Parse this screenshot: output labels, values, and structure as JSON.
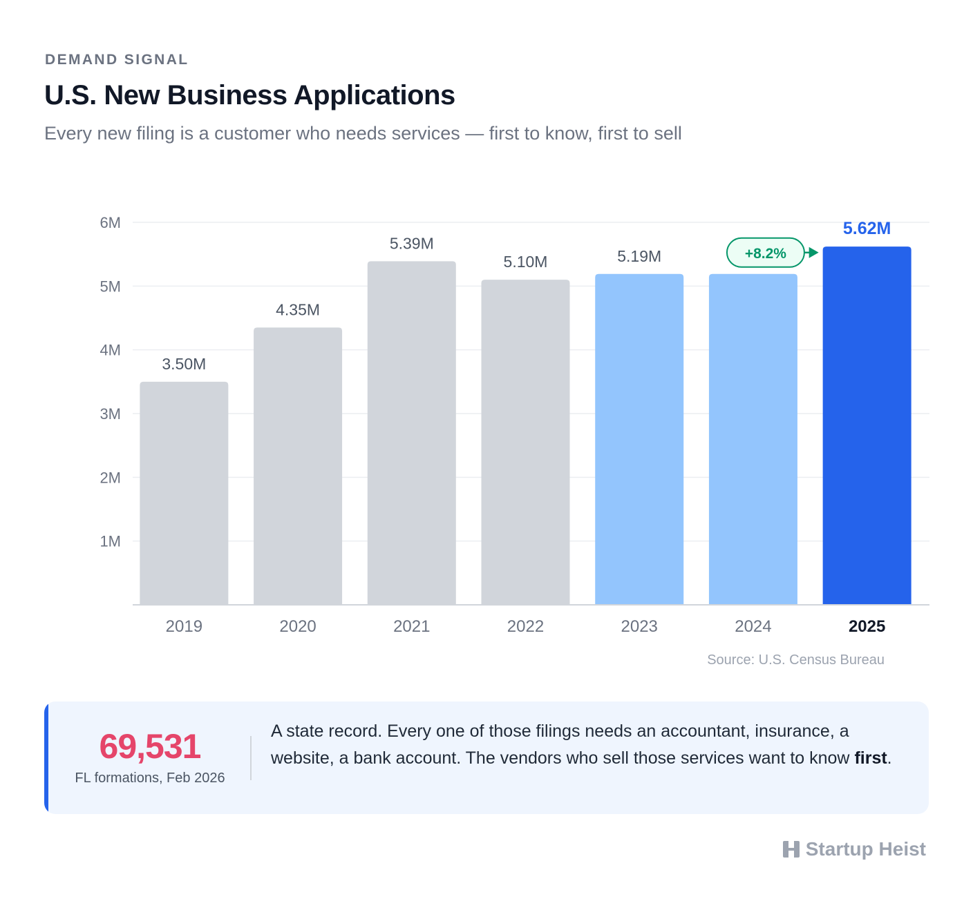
{
  "header": {
    "eyebrow": "DEMAND SIGNAL",
    "title": "U.S. New Business Applications",
    "subtitle": "Every new filing is a customer who needs services — first to know, first to sell"
  },
  "chart_data": {
    "type": "bar",
    "categories": [
      "2019",
      "2020",
      "2021",
      "2022",
      "2023",
      "2024",
      "2025"
    ],
    "values": [
      3.5,
      4.35,
      5.39,
      5.1,
      5.19,
      5.19,
      5.62
    ],
    "value_labels": [
      "3.50M",
      "4.35M",
      "5.39M",
      "5.10M",
      "5.19M",
      "",
      "5.62M"
    ],
    "y_ticks": [
      1,
      2,
      3,
      4,
      5,
      6
    ],
    "y_tick_labels": [
      "1M",
      "2M",
      "3M",
      "4M",
      "5M",
      "6M"
    ],
    "ylim": [
      0,
      6
    ],
    "grid": true,
    "bar_colors": [
      "#d1d5db",
      "#d1d5db",
      "#d1d5db",
      "#d1d5db",
      "#93c5fd",
      "#93c5fd",
      "#2563eb"
    ],
    "highlight_category": "2025",
    "annotation": {
      "text": "+8.2%",
      "color": "#059669",
      "background": "#ecfdf5"
    }
  },
  "source": "Source: U.S. Census Bureau",
  "callout": {
    "stat_value": "69,531",
    "stat_label": "FL formations, Feb 2026",
    "text_before": "A state record. Every one of those filings needs an accountant, insurance, a website, a bank account. The vendors who sell those services want to know ",
    "text_bold": "first",
    "text_after": "."
  },
  "brand": {
    "name": "Startup Heist",
    "icon": "h-logo-icon"
  }
}
